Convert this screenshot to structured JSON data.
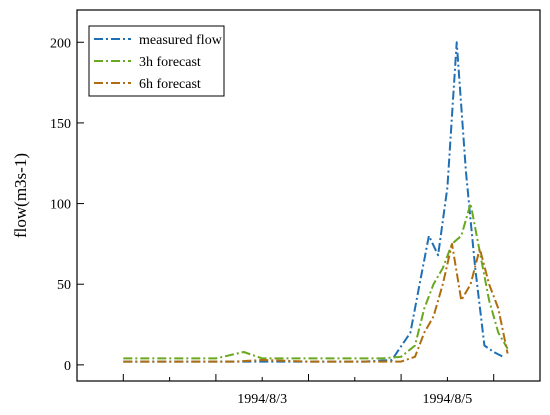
{
  "chart_data": {
    "type": "line",
    "title": "",
    "xlabel": "",
    "ylabel": "flow(m3s-1)",
    "ylim": [
      -10,
      220
    ],
    "xlim": [
      -0.5,
      4.5
    ],
    "y_ticks": [
      0,
      50,
      100,
      150,
      200
    ],
    "x_major_ticks": [
      0,
      1,
      2,
      3,
      4
    ],
    "x_minor_ticks": [
      0.5,
      1.5,
      2.5,
      3.5
    ],
    "x_tick_labels": [
      {
        "x": 1.5,
        "label": "1994/8/3"
      },
      {
        "x": 3.5,
        "label": "1994/8/5"
      }
    ],
    "grid": false,
    "legend_position": "top-left",
    "series": [
      {
        "name": "measured flow",
        "color": "#1f6fb4",
        "points": [
          [
            0,
            2
          ],
          [
            0.7,
            2
          ],
          [
            1.4,
            2
          ],
          [
            2.2,
            2
          ],
          [
            2.6,
            2
          ],
          [
            2.9,
            3
          ],
          [
            3.1,
            20
          ],
          [
            3.2,
            50
          ],
          [
            3.3,
            80
          ],
          [
            3.4,
            68
          ],
          [
            3.5,
            110
          ],
          [
            3.6,
            200
          ],
          [
            3.7,
            120
          ],
          [
            3.8,
            60
          ],
          [
            3.9,
            12
          ],
          [
            4.0,
            8
          ],
          [
            4.1,
            5
          ]
        ]
      },
      {
        "name": "3h forecast",
        "color": "#6aa81f",
        "points": [
          [
            0,
            4
          ],
          [
            0.5,
            4
          ],
          [
            1.0,
            4
          ],
          [
            1.3,
            8
          ],
          [
            1.5,
            4
          ],
          [
            2.0,
            4
          ],
          [
            2.5,
            4
          ],
          [
            2.8,
            4
          ],
          [
            3.0,
            5
          ],
          [
            3.15,
            12
          ],
          [
            3.25,
            35
          ],
          [
            3.35,
            50
          ],
          [
            3.45,
            60
          ],
          [
            3.55,
            75
          ],
          [
            3.65,
            80
          ],
          [
            3.75,
            100
          ],
          [
            3.85,
            70
          ],
          [
            3.95,
            40
          ],
          [
            4.05,
            20
          ],
          [
            4.15,
            10
          ]
        ]
      },
      {
        "name": "6h forecast",
        "color": "#b06d0f",
        "points": [
          [
            0,
            2
          ],
          [
            0.6,
            2
          ],
          [
            1.2,
            2
          ],
          [
            1.5,
            3
          ],
          [
            2.0,
            2
          ],
          [
            2.5,
            2
          ],
          [
            2.8,
            2
          ],
          [
            3.0,
            2
          ],
          [
            3.15,
            5
          ],
          [
            3.25,
            20
          ],
          [
            3.35,
            30
          ],
          [
            3.45,
            50
          ],
          [
            3.55,
            75
          ],
          [
            3.65,
            40
          ],
          [
            3.75,
            50
          ],
          [
            3.85,
            72
          ],
          [
            3.95,
            50
          ],
          [
            4.05,
            35
          ],
          [
            4.15,
            7
          ]
        ]
      }
    ]
  }
}
